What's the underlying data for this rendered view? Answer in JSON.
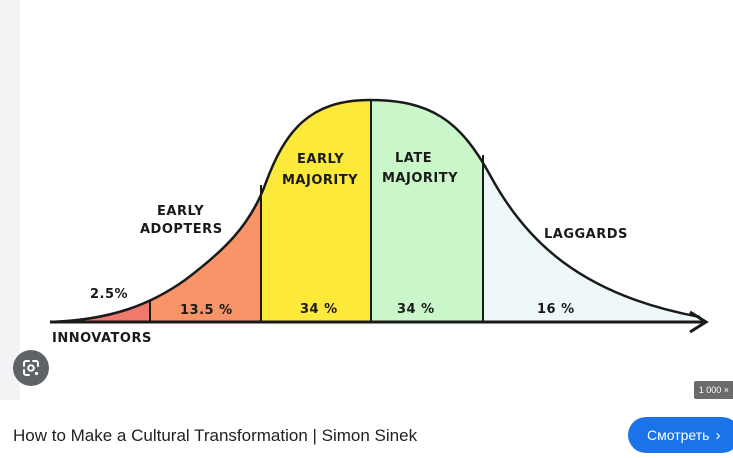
{
  "image": {
    "segments": [
      {
        "name": "INNOVATORS",
        "percent_label": "2.5%",
        "color": "#ef7a6a"
      },
      {
        "name_lines": [
          "EARLY",
          "ADOPTERS"
        ],
        "percent_label": "13.5 %",
        "color": "#f89468"
      },
      {
        "name_lines": [
          "EARLY",
          "MAJORITY"
        ],
        "percent_label": "34 %",
        "color": "#fce93a"
      },
      {
        "name_lines": [
          "LATE",
          "MAJORITY"
        ],
        "percent_label": "34 %",
        "color": "#c9f7c9"
      },
      {
        "name": "LAGGARDS",
        "percent_label": "16 %",
        "color": "#eef8fb"
      }
    ]
  },
  "lens_icon_name": "google-lens-icon",
  "size_badge": "1 000 ×",
  "caption": "How to Make a Cultural Transformation | Simon Sinek",
  "watch_button": {
    "label": "Смотреть",
    "icon": "chevron-right-icon",
    "color": "#1a73e8"
  }
}
